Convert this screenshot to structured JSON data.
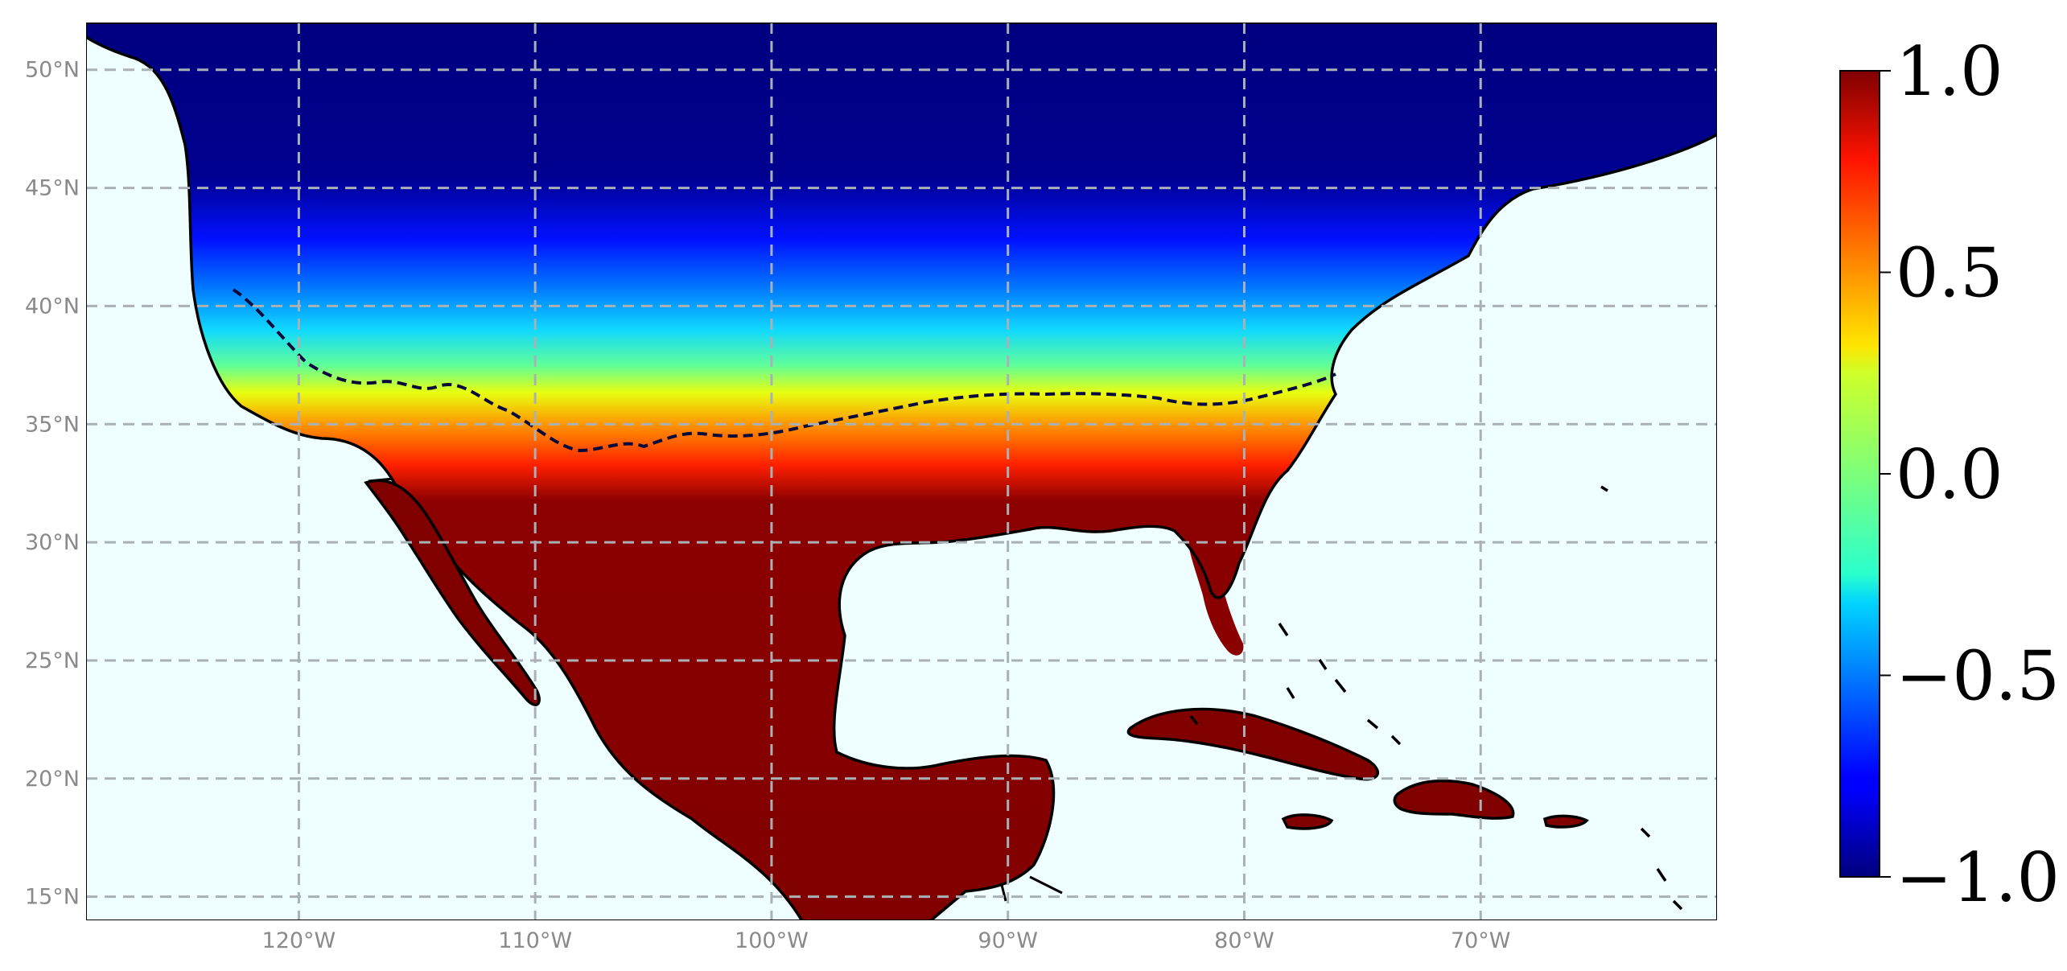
{
  "map": {
    "type": "heatmap",
    "region": "North America / Gulf of Mexico / Caribbean",
    "lon_range": [
      -129,
      -60
    ],
    "lat_range": [
      14,
      52
    ],
    "grid": true,
    "grid_style": "dashed",
    "dashed_contour_value": 0.0,
    "colors": {
      "ocean": "#efffff",
      "lakes": "#9db4dc",
      "border": "#000000",
      "grid": "#a9b1b7"
    },
    "lat_tick_labels": [
      {
        "value": 15,
        "label": "15°N"
      },
      {
        "value": 20,
        "label": "20°N"
      },
      {
        "value": 25,
        "label": "25°N"
      },
      {
        "value": 30,
        "label": "30°N"
      },
      {
        "value": 35,
        "label": "35°N"
      },
      {
        "value": 40,
        "label": "40°N"
      },
      {
        "value": 45,
        "label": "45°N"
      },
      {
        "value": 50,
        "label": "50°N"
      }
    ],
    "lon_tick_labels": [
      {
        "value": -120,
        "label": "120°W"
      },
      {
        "value": -110,
        "label": "110°W"
      },
      {
        "value": -100,
        "label": "100°W"
      },
      {
        "value": -90,
        "label": "90°W"
      },
      {
        "value": -80,
        "label": "80°W"
      },
      {
        "value": -70,
        "label": "70°W"
      }
    ]
  },
  "colorbar": {
    "colormap": "jet",
    "range": [
      -1.0,
      1.0
    ],
    "ticks": [
      {
        "value": 1.0,
        "label": "1.0"
      },
      {
        "value": 0.5,
        "label": "0.5"
      },
      {
        "value": 0.0,
        "label": "0.0"
      },
      {
        "value": -0.5,
        "label": "−0.5"
      },
      {
        "value": -1.0,
        "label": "−1.0"
      }
    ]
  },
  "chart_data": {
    "type": "heatmap",
    "x_axis": "longitude",
    "y_axis": "latitude",
    "xlim": [
      -129,
      -60
    ],
    "ylim": [
      14,
      52
    ],
    "value_range": [
      -1.0,
      1.0
    ],
    "colormap": "jet",
    "pattern": "values near 1.0 across Mexico, Central America, the Caribbean and the southern US; transition through 0 near 36°N; values near -1.0 over Canada and the northern US; cool patches over the high terrain of western Mexico"
  }
}
